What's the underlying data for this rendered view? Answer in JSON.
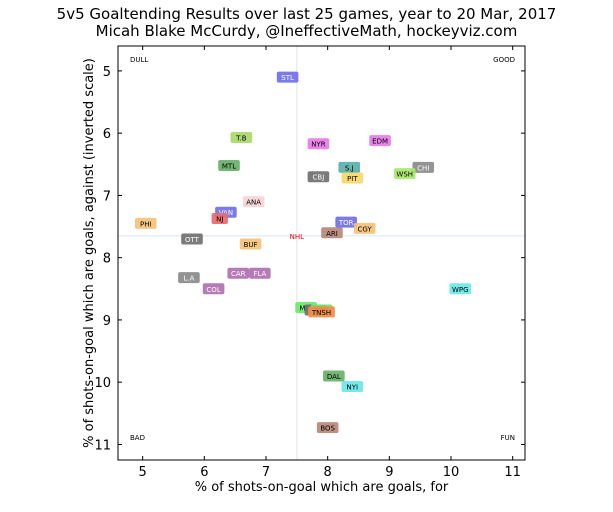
{
  "chart_data": {
    "type": "scatter",
    "title": "5v5 Goaltending Results over last 25 games, year to 20 Mar, 2017",
    "subtitle": "Micah Blake McCurdy, @IneffectiveMath, hockeyviz.com",
    "xlabel": "% of shots-on-goal which are goals, for",
    "ylabel": "% of shots-on-goal which are goals, against (inverted scale)",
    "xlim": [
      4.6,
      11.2
    ],
    "ylim": [
      4.6,
      11.25
    ],
    "y_inverted": true,
    "xticks": [
      5,
      6,
      7,
      8,
      9,
      10,
      11
    ],
    "yticks": [
      5,
      6,
      7,
      8,
      9,
      10,
      11
    ],
    "corner_labels": {
      "top_left": "DULL",
      "top_right": "GOOD",
      "bottom_left": "BAD",
      "bottom_right": "FUN"
    },
    "reference": {
      "label": "NHL",
      "x": 7.5,
      "y": 7.65,
      "color": "#ff0000"
    },
    "points": [
      {
        "label": "STL",
        "x": 7.35,
        "y": 5.1,
        "color": "#6f6fe8"
      },
      {
        "label": "T.B",
        "x": 6.6,
        "y": 6.07,
        "color": "#a9d96b"
      },
      {
        "label": "NYR",
        "x": 7.85,
        "y": 6.17,
        "color": "#e878e8"
      },
      {
        "label": "EDM",
        "x": 8.85,
        "y": 6.12,
        "color": "#e878e8"
      },
      {
        "label": "MTL",
        "x": 6.4,
        "y": 6.52,
        "color": "#68b068"
      },
      {
        "label": "S.J",
        "x": 8.35,
        "y": 6.55,
        "color": "#5ab0a8"
      },
      {
        "label": "CHI",
        "x": 9.55,
        "y": 6.55,
        "color": "#8a8a8a"
      },
      {
        "label": "WSH",
        "x": 9.25,
        "y": 6.65,
        "color": "#a6e86a"
      },
      {
        "label": "CBJ",
        "x": 7.85,
        "y": 6.7,
        "color": "#707070"
      },
      {
        "label": "PIT",
        "x": 8.4,
        "y": 6.72,
        "color": "#f5d86a"
      },
      {
        "label": "ANA",
        "x": 6.8,
        "y": 7.1,
        "color": "#f5d5d5"
      },
      {
        "label": "VAN",
        "x": 6.35,
        "y": 7.27,
        "color": "#6f6fe8"
      },
      {
        "label": "NJ",
        "x": 6.25,
        "y": 7.37,
        "color": "#e86a6a"
      },
      {
        "label": "PHI",
        "x": 5.05,
        "y": 7.45,
        "color": "#f5c27a"
      },
      {
        "label": "TOR",
        "x": 8.3,
        "y": 7.43,
        "color": "#6f6fe8"
      },
      {
        "label": "CGY",
        "x": 8.6,
        "y": 7.53,
        "color": "#f5c27a"
      },
      {
        "label": "ARI",
        "x": 8.07,
        "y": 7.6,
        "color": "#b8887a"
      },
      {
        "label": "OTT",
        "x": 5.8,
        "y": 7.7,
        "color": "#707070"
      },
      {
        "label": "BUF",
        "x": 6.75,
        "y": 7.78,
        "color": "#f5c27a"
      },
      {
        "label": "L.A",
        "x": 5.75,
        "y": 8.32,
        "color": "#8a8a8a"
      },
      {
        "label": "CAR",
        "x": 6.55,
        "y": 8.25,
        "color": "#b070b0"
      },
      {
        "label": "FLA",
        "x": 6.9,
        "y": 8.25,
        "color": "#b070b0"
      },
      {
        "label": "COL",
        "x": 6.15,
        "y": 8.5,
        "color": "#b070b0"
      },
      {
        "label": "WPG",
        "x": 10.15,
        "y": 8.5,
        "color": "#6ae8e8"
      },
      {
        "label": "MIN",
        "x": 7.65,
        "y": 8.8,
        "color": "#6ae86a"
      },
      {
        "label": "CBJ",
        "x": 7.8,
        "y": 8.84,
        "color": "#707070"
      },
      {
        "label": "MIN",
        "x": 7.9,
        "y": 8.84,
        "color": "#6ae86a"
      },
      {
        "label": "TNSH",
        "x": 7.9,
        "y": 8.87,
        "color": "#f58a4a"
      },
      {
        "label": "DAL",
        "x": 8.1,
        "y": 9.9,
        "color": "#68b068"
      },
      {
        "label": "NYI",
        "x": 8.4,
        "y": 10.07,
        "color": "#6ae8e8"
      },
      {
        "label": "BOS",
        "x": 8.0,
        "y": 10.73,
        "color": "#b8887a"
      }
    ]
  }
}
